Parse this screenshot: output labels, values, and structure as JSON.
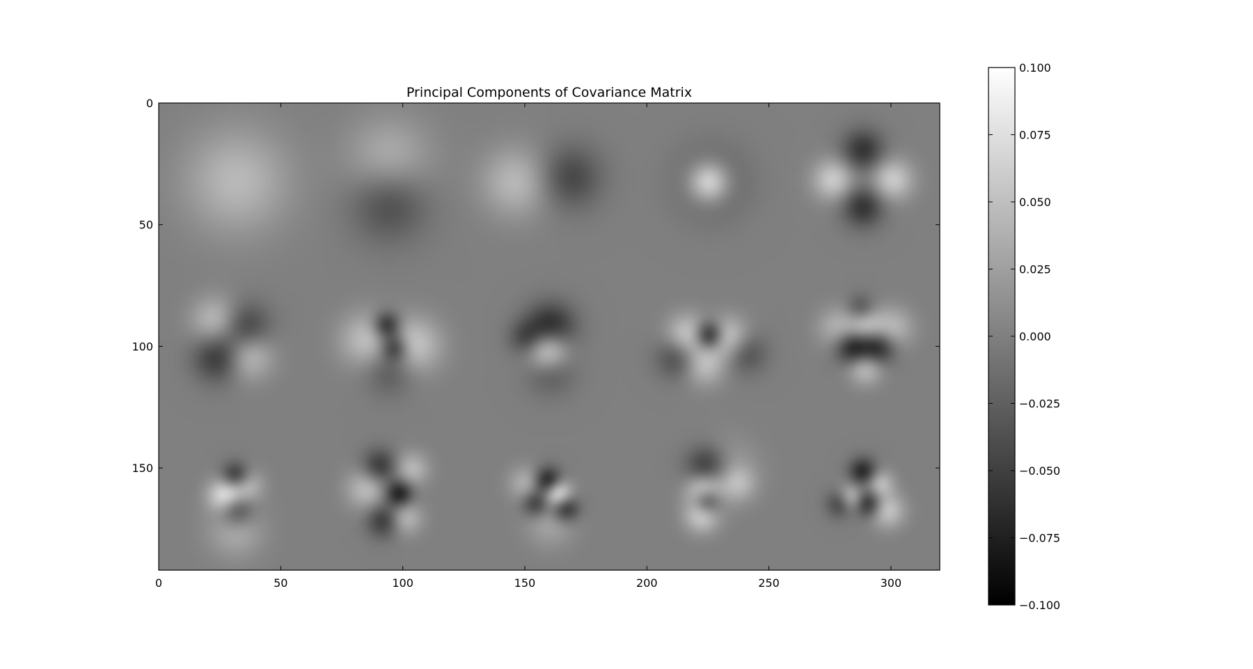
{
  "chart_data": {
    "type": "heatmap",
    "title": "Principal Components of Covariance Matrix",
    "xlabel": "",
    "ylabel": "",
    "xlim": [
      0,
      320
    ],
    "ylim": [
      192,
      0
    ],
    "x_ticks": [
      0,
      50,
      100,
      150,
      200,
      250,
      300
    ],
    "x_tick_labels": [
      "0",
      "50",
      "100",
      "150",
      "200",
      "250",
      "300"
    ],
    "y_ticks": [
      0,
      50,
      100,
      150
    ],
    "y_tick_labels": [
      "0",
      "50",
      "100",
      "150"
    ],
    "colormap": "gray",
    "colormap_low_color": "#000000",
    "colormap_high_color": "#ffffff",
    "value_range": [
      -0.1,
      0.1
    ],
    "colorbar_ticks": [
      0.1,
      0.075,
      0.05,
      0.025,
      0.0,
      -0.025,
      -0.05,
      -0.075,
      -0.1
    ],
    "colorbar_tick_labels": [
      "0.100",
      "0.075",
      "0.050",
      "0.025",
      "0.000",
      "−0.025",
      "−0.050",
      "−0.075",
      "−0.100"
    ],
    "grid": false,
    "panel_grid": {
      "rows": 3,
      "cols": 5
    },
    "panels": [
      {
        "row": 0,
        "col": 0,
        "blobs": [
          [
            31.5,
            31.5,
            15,
            0.045
          ]
        ]
      },
      {
        "row": 0,
        "col": 1,
        "blobs": [
          [
            94,
            23,
            12,
            0.04
          ],
          [
            94,
            40,
            11,
            -0.045
          ]
        ]
      },
      {
        "row": 0,
        "col": 2,
        "blobs": [
          [
            146,
            32,
            10,
            0.045
          ],
          [
            168,
            30,
            9,
            -0.045
          ]
        ]
      },
      {
        "row": 0,
        "col": 3,
        "blobs": [
          [
            226,
            32,
            10,
            -0.035
          ],
          [
            225,
            32,
            6,
            0.095
          ]
        ]
      },
      {
        "row": 0,
        "col": 4,
        "blobs": [
          [
            288,
            19,
            6,
            -0.06
          ],
          [
            288,
            42,
            6,
            -0.06
          ],
          [
            276,
            31,
            6,
            0.06
          ],
          [
            300,
            31,
            6,
            0.06
          ]
        ]
      },
      {
        "row": 1,
        "col": 0,
        "blobs": [
          [
            35,
            92,
            7,
            -0.055
          ],
          [
            24,
            104,
            7,
            -0.06
          ],
          [
            23,
            89,
            7,
            0.05
          ],
          [
            36,
            103,
            7,
            0.055
          ]
        ]
      },
      {
        "row": 1,
        "col": 1,
        "blobs": [
          [
            93,
            91,
            4,
            -0.08
          ],
          [
            96,
            100,
            4,
            -0.07
          ],
          [
            85,
            97,
            8,
            0.05
          ],
          [
            104,
            99,
            8,
            0.055
          ],
          [
            94,
            109,
            7,
            -0.035
          ]
        ]
      },
      {
        "row": 1,
        "col": 2,
        "blobs": [
          [
            160,
            92,
            7,
            -0.075
          ],
          [
            159,
            101,
            6,
            0.09
          ],
          [
            150,
            96,
            5,
            -0.04
          ],
          [
            160,
            109,
            7,
            -0.035
          ]
        ]
      },
      {
        "row": 1,
        "col": 3,
        "blobs": [
          [
            225,
            95,
            4,
            -0.09
          ],
          [
            216,
            95,
            6,
            0.06
          ],
          [
            233,
            96,
            6,
            0.06
          ],
          [
            223,
            107,
            6,
            0.05
          ],
          [
            212,
            104,
            6,
            -0.045
          ],
          [
            240,
            102,
            6,
            -0.04
          ]
        ]
      },
      {
        "row": 1,
        "col": 4,
        "blobs": [
          [
            284,
            100,
            5,
            -0.08
          ],
          [
            294,
            100,
            5,
            -0.075
          ],
          [
            289,
            91,
            5,
            0.05
          ],
          [
            289,
            108,
            5,
            0.055
          ],
          [
            278,
            92,
            6,
            0.04
          ],
          [
            300,
            92,
            6,
            0.045
          ],
          [
            287,
            84,
            4,
            -0.04
          ]
        ]
      },
      {
        "row": 2,
        "col": 0,
        "blobs": [
          [
            31,
            153,
            4,
            -0.075
          ],
          [
            27,
            161,
            5,
            0.085
          ],
          [
            31,
            166,
            5,
            -0.07
          ],
          [
            35,
            157,
            5,
            0.05
          ],
          [
            31,
            175,
            8,
            0.035
          ]
        ]
      },
      {
        "row": 2,
        "col": 1,
        "blobs": [
          [
            98,
            160,
            4,
            -0.08
          ],
          [
            90,
            149,
            5,
            -0.06
          ],
          [
            92,
            171,
            5,
            -0.06
          ],
          [
            85,
            158,
            6,
            0.05
          ],
          [
            100,
            170,
            5,
            0.05
          ],
          [
            103,
            150,
            5,
            0.045
          ]
        ]
      },
      {
        "row": 2,
        "col": 2,
        "blobs": [
          [
            159,
            155,
            4,
            -0.085
          ],
          [
            163,
            160,
            4,
            0.09
          ],
          [
            166,
            166,
            4,
            -0.075
          ],
          [
            154,
            164,
            4,
            -0.06
          ],
          [
            150,
            156,
            5,
            0.04
          ],
          [
            160,
            172,
            7,
            0.03
          ]
        ]
      },
      {
        "row": 2,
        "col": 3,
        "blobs": [
          [
            224,
            149,
            6,
            -0.065
          ],
          [
            223,
            159,
            5,
            0.08
          ],
          [
            224,
            163,
            4,
            -0.09
          ],
          [
            222,
            169,
            5,
            0.06
          ],
          [
            237,
            156,
            5,
            0.035
          ],
          [
            232,
            150,
            9,
            0.025
          ]
        ]
      },
      {
        "row": 2,
        "col": 4,
        "blobs": [
          [
            288,
            151,
            4,
            -0.07
          ],
          [
            283,
            162,
            4,
            0.07
          ],
          [
            290,
            164,
            4,
            -0.075
          ],
          [
            295,
            156,
            4,
            0.05
          ],
          [
            279,
            164,
            4,
            -0.06
          ],
          [
            298,
            167,
            5,
            0.055
          ]
        ]
      }
    ],
    "background_value": 0.0
  }
}
